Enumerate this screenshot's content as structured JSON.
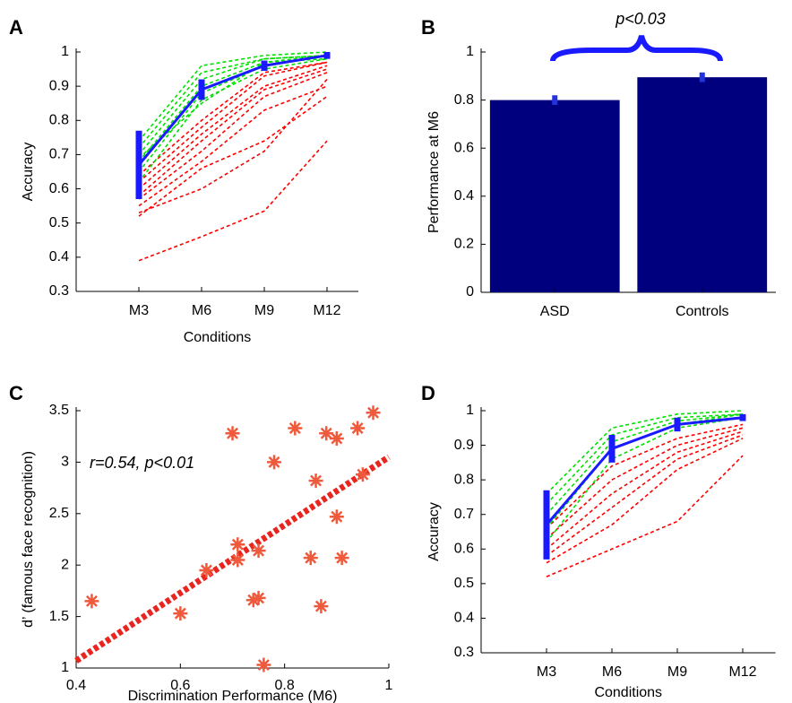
{
  "chart_data": [
    {
      "type": "line",
      "panel_label": "A",
      "x_label": "Conditions",
      "y_label": "Accuracy",
      "categories": [
        "M3",
        "M6",
        "M9",
        "M12"
      ],
      "ylim": [
        0.3,
        1
      ],
      "yticks": [
        0.3,
        0.4,
        0.5,
        0.6,
        0.7,
        0.8,
        0.9,
        1
      ],
      "series": [
        {
          "color": "#ff0000",
          "line_style": "dashed",
          "values": [
            0.39,
            0.46,
            0.535,
            0.74
          ]
        },
        {
          "color": "#ff0000",
          "line_style": "dashed",
          "values": [
            0.52,
            0.66,
            0.74,
            0.87
          ]
        },
        {
          "color": "#ff0000",
          "line_style": "dashed",
          "values": [
            0.53,
            0.6,
            0.71,
            0.92
          ]
        },
        {
          "color": "#ff0000",
          "line_style": "dashed",
          "values": [
            0.55,
            0.68,
            0.83,
            0.9
          ]
        },
        {
          "color": "#ff0000",
          "line_style": "dashed",
          "values": [
            0.57,
            0.71,
            0.87,
            0.94
          ]
        },
        {
          "color": "#ff0000",
          "line_style": "dashed",
          "values": [
            0.58,
            0.74,
            0.89,
            0.95
          ]
        },
        {
          "color": "#ff0000",
          "line_style": "dashed",
          "values": [
            0.6,
            0.76,
            0.9,
            0.96
          ]
        },
        {
          "color": "#ff0000",
          "line_style": "dashed",
          "values": [
            0.62,
            0.78,
            0.93,
            0.97
          ]
        },
        {
          "color": "#ff0000",
          "line_style": "dashed",
          "values": [
            0.64,
            0.8,
            0.94,
            0.97
          ]
        },
        {
          "color": "#00e000",
          "line_style": "dashed",
          "values": [
            0.62,
            0.86,
            0.95,
            0.98
          ]
        },
        {
          "color": "#00e000",
          "line_style": "dashed",
          "values": [
            0.65,
            0.88,
            0.96,
            0.99
          ]
        },
        {
          "color": "#00e000",
          "line_style": "dashed",
          "values": [
            0.68,
            0.9,
            0.97,
            0.99
          ]
        },
        {
          "color": "#00e000",
          "line_style": "dashed",
          "values": [
            0.7,
            0.92,
            0.98,
            0.99
          ]
        },
        {
          "color": "#00e000",
          "line_style": "dashed",
          "values": [
            0.72,
            0.94,
            0.98,
            0.99
          ]
        },
        {
          "color": "#00e000",
          "line_style": "dashed",
          "values": [
            0.74,
            0.96,
            0.99,
            1
          ]
        },
        {
          "color": "#00e000",
          "line_style": "dashed",
          "values": [
            0.69,
            0.85,
            0.97,
            0.98
          ]
        },
        {
          "color": "#1a1aff",
          "line_style": "solid",
          "values": [
            0.67,
            0.89,
            0.96,
            0.99
          ],
          "errors": [
            0.1,
            0.03,
            0.015,
            0.01
          ]
        }
      ]
    },
    {
      "type": "bar",
      "panel_label": "B",
      "y_label": "Performance at M6",
      "annotation": "p<0.03",
      "categories": [
        "ASD",
        "Controls"
      ],
      "values": [
        0.8,
        0.895
      ],
      "errors": [
        0.02,
        0.02
      ],
      "color": "#00007f",
      "error_color": "#2233dd",
      "ylim": [
        0,
        1
      ],
      "yticks": [
        0,
        0.2,
        0.4,
        0.6,
        0.8,
        1
      ]
    },
    {
      "type": "scatter",
      "panel_label": "C",
      "x_label": "Discrimination Performance (M6)",
      "y_label": "d’ (famous face recognition)",
      "annotation": "r=0.54, p<0.01",
      "color": "#f05a3c",
      "x": [
        0.43,
        0.6,
        0.65,
        0.7,
        0.71,
        0.71,
        0.74,
        0.75,
        0.75,
        0.76,
        0.78,
        0.82,
        0.85,
        0.86,
        0.87,
        0.88,
        0.9,
        0.9,
        0.91,
        0.94,
        0.95,
        0.97
      ],
      "y": [
        1.65,
        1.53,
        1.95,
        3.28,
        2.2,
        2.05,
        1.66,
        1.68,
        2.14,
        1.03,
        3.0,
        3.33,
        2.07,
        2.82,
        1.6,
        3.28,
        3.23,
        2.47,
        2.07,
        3.33,
        2.88,
        3.48
      ],
      "fit": {
        "x": [
          0.4,
          1
        ],
        "y": [
          1.07,
          3.05
        ],
        "color": "#e8251f"
      },
      "xlim": [
        0.4,
        1
      ],
      "xticks": [
        0.4,
        0.6,
        0.8,
        1
      ],
      "ylim": [
        1,
        3.5
      ],
      "yticks": [
        1,
        1.5,
        2,
        2.5,
        3,
        3.5
      ]
    },
    {
      "type": "line",
      "panel_label": "D",
      "x_label": "Conditions",
      "y_label": "Accuracy",
      "categories": [
        "M3",
        "M6",
        "M9",
        "M12"
      ],
      "ylim": [
        0.3,
        1
      ],
      "yticks": [
        0.3,
        0.4,
        0.5,
        0.6,
        0.7,
        0.8,
        0.9,
        1
      ],
      "series": [
        {
          "color": "#ff0000",
          "line_style": "dashed",
          "values": [
            0.52,
            0.6,
            0.68,
            0.87
          ]
        },
        {
          "color": "#ff0000",
          "line_style": "dashed",
          "values": [
            0.56,
            0.67,
            0.83,
            0.92
          ]
        },
        {
          "color": "#ff0000",
          "line_style": "dashed",
          "values": [
            0.58,
            0.72,
            0.86,
            0.93
          ]
        },
        {
          "color": "#ff0000",
          "line_style": "dashed",
          "values": [
            0.6,
            0.76,
            0.88,
            0.94
          ]
        },
        {
          "color": "#ff0000",
          "line_style": "dashed",
          "values": [
            0.63,
            0.8,
            0.9,
            0.95
          ]
        },
        {
          "color": "#ff0000",
          "line_style": "dashed",
          "values": [
            0.66,
            0.84,
            0.92,
            0.96
          ]
        },
        {
          "color": "#00e000",
          "line_style": "dashed",
          "values": [
            0.62,
            0.86,
            0.95,
            0.98
          ]
        },
        {
          "color": "#00e000",
          "line_style": "dashed",
          "values": [
            0.66,
            0.89,
            0.96,
            0.99
          ]
        },
        {
          "color": "#00e000",
          "line_style": "dashed",
          "values": [
            0.7,
            0.91,
            0.97,
            0.99
          ]
        },
        {
          "color": "#00e000",
          "line_style": "dashed",
          "values": [
            0.73,
            0.93,
            0.98,
            0.99
          ]
        },
        {
          "color": "#00e000",
          "line_style": "dashed",
          "values": [
            0.76,
            0.95,
            0.99,
            1
          ]
        },
        {
          "color": "#1a1aff",
          "line_style": "solid",
          "values": [
            0.67,
            0.89,
            0.96,
            0.98
          ],
          "errors": [
            0.1,
            0.04,
            0.02,
            0.01
          ]
        }
      ]
    }
  ]
}
